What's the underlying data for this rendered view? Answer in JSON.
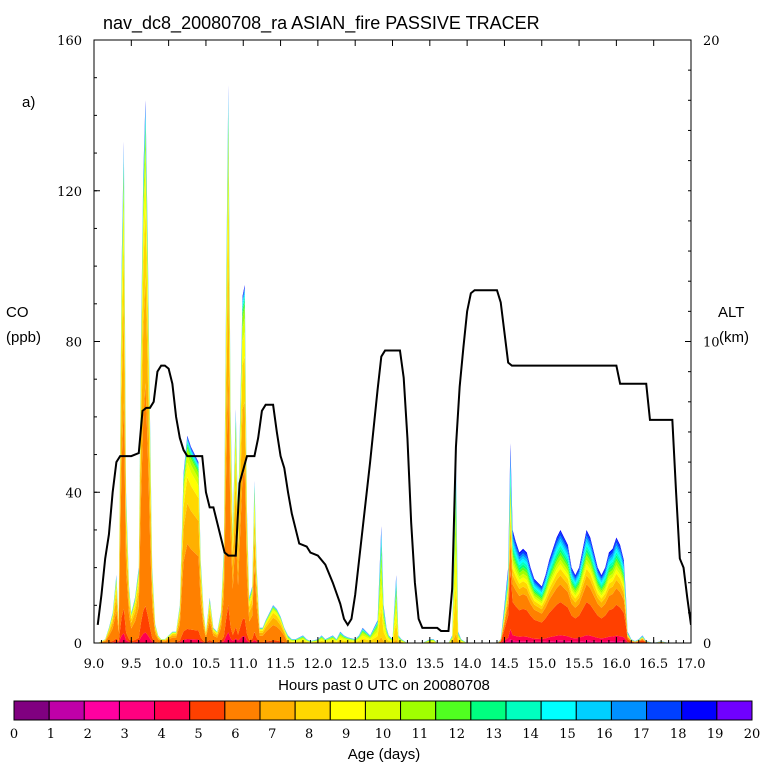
{
  "chart_data": {
    "type": "area",
    "title": "nav_dc8_20080708_ra ASIAN_fire PASSIVE TRACER",
    "panel_label": "a)",
    "xlabel": "Hours past 0 UTC on 20080708",
    "ylabel_left_line1": "CO",
    "ylabel_left_line2": "(ppb)",
    "ylabel_right_line1": "ALT",
    "ylabel_right_line2": "(km)",
    "xlim": [
      9.0,
      17.0
    ],
    "ylim_left": [
      0,
      160
    ],
    "ylim_right": [
      0,
      20
    ],
    "x_ticks": [
      "9.0",
      "9.5",
      "10.0",
      "10.5",
      "11.0",
      "11.5",
      "12.0",
      "12.5",
      "13.0",
      "13.5",
      "14.0",
      "14.5",
      "15.0",
      "15.5",
      "16.0",
      "16.5",
      "17.0"
    ],
    "y_ticks_left": [
      "0",
      "40",
      "80",
      "120",
      "160"
    ],
    "y_ticks_right": [
      "0",
      "10",
      "20"
    ],
    "colorbar_label": "Age (days)",
    "colorbar_ticks": [
      "0",
      "1",
      "2",
      "3",
      "4",
      "5",
      "6",
      "7",
      "8",
      "9",
      "10",
      "11",
      "12",
      "13",
      "14",
      "15",
      "16",
      "17",
      "18",
      "19",
      "20"
    ],
    "colorbar_colors": [
      "#800080",
      "#c000a8",
      "#ff00a0",
      "#ff0080",
      "#ff0050",
      "#ff4000",
      "#ff8000",
      "#ffb000",
      "#ffd800",
      "#ffff00",
      "#d8ff00",
      "#a0ff00",
      "#50ff20",
      "#00ff80",
      "#00ffc0",
      "#00ffff",
      "#00d0ff",
      "#0090ff",
      "#0040ff",
      "#0000ff",
      "#7000ff"
    ],
    "co_total": [
      [
        9.0,
        0
      ],
      [
        9.05,
        0
      ],
      [
        9.1,
        0.5
      ],
      [
        9.15,
        1
      ],
      [
        9.2,
        4
      ],
      [
        9.25,
        8
      ],
      [
        9.3,
        18
      ],
      [
        9.33,
        6
      ],
      [
        9.37,
        100
      ],
      [
        9.4,
        133
      ],
      [
        9.43,
        40
      ],
      [
        9.47,
        15
      ],
      [
        9.5,
        8
      ],
      [
        9.55,
        12
      ],
      [
        9.6,
        20
      ],
      [
        9.63,
        80
      ],
      [
        9.66,
        124
      ],
      [
        9.69,
        144
      ],
      [
        9.72,
        107
      ],
      [
        9.75,
        60
      ],
      [
        9.78,
        20
      ],
      [
        9.82,
        5
      ],
      [
        9.86,
        2
      ],
      [
        9.9,
        1
      ],
      [
        9.95,
        1
      ],
      [
        10.0,
        2
      ],
      [
        10.05,
        3
      ],
      [
        10.1,
        3
      ],
      [
        10.15,
        10
      ],
      [
        10.2,
        45
      ],
      [
        10.25,
        55
      ],
      [
        10.3,
        52
      ],
      [
        10.35,
        50
      ],
      [
        10.4,
        48
      ],
      [
        10.43,
        22
      ],
      [
        10.47,
        8
      ],
      [
        10.5,
        3
      ],
      [
        10.55,
        12
      ],
      [
        10.6,
        4
      ],
      [
        10.65,
        3
      ],
      [
        10.7,
        8
      ],
      [
        10.74,
        25
      ],
      [
        10.77,
        92
      ],
      [
        10.8,
        148
      ],
      [
        10.83,
        62
      ],
      [
        10.86,
        30
      ],
      [
        10.9,
        62
      ],
      [
        10.93,
        32
      ],
      [
        10.96,
        62
      ],
      [
        10.99,
        92
      ],
      [
        11.02,
        95
      ],
      [
        11.05,
        35
      ],
      [
        11.08,
        12
      ],
      [
        11.12,
        15
      ],
      [
        11.15,
        43
      ],
      [
        11.18,
        20
      ],
      [
        11.22,
        4
      ],
      [
        11.26,
        4
      ],
      [
        11.3,
        6
      ],
      [
        11.35,
        8
      ],
      [
        11.4,
        10
      ],
      [
        11.45,
        9
      ],
      [
        11.5,
        7
      ],
      [
        11.55,
        4
      ],
      [
        11.6,
        2
      ],
      [
        11.65,
        1
      ],
      [
        11.7,
        1
      ],
      [
        11.8,
        2
      ],
      [
        11.85,
        1
      ],
      [
        11.9,
        0.5
      ],
      [
        12.0,
        1
      ],
      [
        12.05,
        2
      ],
      [
        12.1,
        1
      ],
      [
        12.2,
        2
      ],
      [
        12.25,
        1
      ],
      [
        12.3,
        3
      ],
      [
        12.35,
        2
      ],
      [
        12.4,
        1.5
      ],
      [
        12.5,
        1
      ],
      [
        12.55,
        2
      ],
      [
        12.6,
        4
      ],
      [
        12.65,
        3
      ],
      [
        12.7,
        2
      ],
      [
        12.75,
        4
      ],
      [
        12.8,
        6
      ],
      [
        12.85,
        31
      ],
      [
        12.88,
        10
      ],
      [
        12.92,
        4
      ],
      [
        12.95,
        2
      ],
      [
        13.0,
        1
      ],
      [
        13.05,
        18
      ],
      [
        13.08,
        2
      ],
      [
        13.12,
        1
      ],
      [
        13.2,
        0
      ],
      [
        13.4,
        0
      ],
      [
        13.45,
        0.5
      ],
      [
        13.5,
        1
      ],
      [
        13.55,
        1
      ],
      [
        13.6,
        0
      ],
      [
        13.75,
        0
      ],
      [
        13.8,
        2
      ],
      [
        13.85,
        50
      ],
      [
        13.88,
        3
      ],
      [
        13.92,
        1
      ],
      [
        14.0,
        0
      ],
      [
        14.3,
        0
      ],
      [
        14.4,
        0
      ],
      [
        14.45,
        1
      ],
      [
        14.5,
        10
      ],
      [
        14.55,
        20
      ],
      [
        14.58,
        53
      ],
      [
        14.61,
        30
      ],
      [
        14.65,
        27
      ],
      [
        14.7,
        24
      ],
      [
        14.75,
        25
      ],
      [
        14.8,
        24
      ],
      [
        14.85,
        20
      ],
      [
        14.9,
        17
      ],
      [
        14.95,
        16
      ],
      [
        15.0,
        15
      ],
      [
        15.05,
        18
      ],
      [
        15.1,
        22
      ],
      [
        15.15,
        25
      ],
      [
        15.2,
        28
      ],
      [
        15.25,
        30
      ],
      [
        15.3,
        28
      ],
      [
        15.35,
        26
      ],
      [
        15.4,
        20
      ],
      [
        15.45,
        18
      ],
      [
        15.5,
        20
      ],
      [
        15.55,
        25
      ],
      [
        15.6,
        30
      ],
      [
        15.65,
        28
      ],
      [
        15.7,
        24
      ],
      [
        15.75,
        20
      ],
      [
        15.8,
        18
      ],
      [
        15.85,
        20
      ],
      [
        15.9,
        24
      ],
      [
        15.95,
        25
      ],
      [
        16.0,
        28
      ],
      [
        16.05,
        26
      ],
      [
        16.1,
        22
      ],
      [
        16.13,
        12
      ],
      [
        16.15,
        3
      ],
      [
        16.2,
        1
      ],
      [
        16.25,
        0.5
      ],
      [
        16.3,
        1
      ],
      [
        16.35,
        2
      ],
      [
        16.4,
        0.5
      ],
      [
        16.5,
        0
      ],
      [
        16.6,
        0.5
      ],
      [
        16.7,
        0
      ],
      [
        17.0,
        0
      ]
    ],
    "altitude_km": [
      [
        9.05,
        0.6
      ],
      [
        9.1,
        1.6
      ],
      [
        9.15,
        2.8
      ],
      [
        9.2,
        3.6
      ],
      [
        9.25,
        5.0
      ],
      [
        9.3,
        6.0
      ],
      [
        9.35,
        6.2
      ],
      [
        9.5,
        6.2
      ],
      [
        9.6,
        6.3
      ],
      [
        9.65,
        7.7
      ],
      [
        9.7,
        7.8
      ],
      [
        9.75,
        7.8
      ],
      [
        9.8,
        8.0
      ],
      [
        9.85,
        9.0
      ],
      [
        9.9,
        9.2
      ],
      [
        9.95,
        9.2
      ],
      [
        10.0,
        9.1
      ],
      [
        10.05,
        8.6
      ],
      [
        10.1,
        7.5
      ],
      [
        10.15,
        6.8
      ],
      [
        10.2,
        6.4
      ],
      [
        10.25,
        6.2
      ],
      [
        10.45,
        6.2
      ],
      [
        10.5,
        5.0
      ],
      [
        10.55,
        4.5
      ],
      [
        10.6,
        4.5
      ],
      [
        10.65,
        4.0
      ],
      [
        10.7,
        3.5
      ],
      [
        10.75,
        3.0
      ],
      [
        10.8,
        2.9
      ],
      [
        10.9,
        2.9
      ],
      [
        10.95,
        5.3
      ],
      [
        11.05,
        6.2
      ],
      [
        11.15,
        6.2
      ],
      [
        11.2,
        6.8
      ],
      [
        11.25,
        7.7
      ],
      [
        11.3,
        7.9
      ],
      [
        11.35,
        7.9
      ],
      [
        11.4,
        7.9
      ],
      [
        11.45,
        7.0
      ],
      [
        11.5,
        6.2
      ],
      [
        11.55,
        5.8
      ],
      [
        11.6,
        5.0
      ],
      [
        11.65,
        4.3
      ],
      [
        11.7,
        3.8
      ],
      [
        11.75,
        3.3
      ],
      [
        11.85,
        3.2
      ],
      [
        11.9,
        3.0
      ],
      [
        12.0,
        2.9
      ],
      [
        12.1,
        2.6
      ],
      [
        12.2,
        2.0
      ],
      [
        12.3,
        1.3
      ],
      [
        12.35,
        0.8
      ],
      [
        12.4,
        0.6
      ],
      [
        12.45,
        0.8
      ],
      [
        12.5,
        1.6
      ],
      [
        12.6,
        3.8
      ],
      [
        12.7,
        6.0
      ],
      [
        12.8,
        8.4
      ],
      [
        12.85,
        9.5
      ],
      [
        12.9,
        9.7
      ],
      [
        13.1,
        9.7
      ],
      [
        13.15,
        8.8
      ],
      [
        13.2,
        6.8
      ],
      [
        13.25,
        4.0
      ],
      [
        13.3,
        2.0
      ],
      [
        13.35,
        0.8
      ],
      [
        13.4,
        0.5
      ],
      [
        13.5,
        0.5
      ],
      [
        13.6,
        0.5
      ],
      [
        13.65,
        0.4
      ],
      [
        13.75,
        0.4
      ],
      [
        13.8,
        1.8
      ],
      [
        13.85,
        6.5
      ],
      [
        13.9,
        8.5
      ],
      [
        13.95,
        9.8
      ],
      [
        14.0,
        11.0
      ],
      [
        14.05,
        11.6
      ],
      [
        14.1,
        11.7
      ],
      [
        14.4,
        11.7
      ],
      [
        14.45,
        11.3
      ],
      [
        14.5,
        10.3
      ],
      [
        14.55,
        9.3
      ],
      [
        14.6,
        9.2
      ],
      [
        15.0,
        9.2
      ],
      [
        15.5,
        9.2
      ],
      [
        16.0,
        9.2
      ],
      [
        16.05,
        8.6
      ],
      [
        16.4,
        8.6
      ],
      [
        16.45,
        7.4
      ],
      [
        16.75,
        7.4
      ],
      [
        16.8,
        5.0
      ],
      [
        16.85,
        2.8
      ],
      [
        16.9,
        2.5
      ],
      [
        16.95,
        1.5
      ],
      [
        17.0,
        0.6
      ]
    ]
  }
}
